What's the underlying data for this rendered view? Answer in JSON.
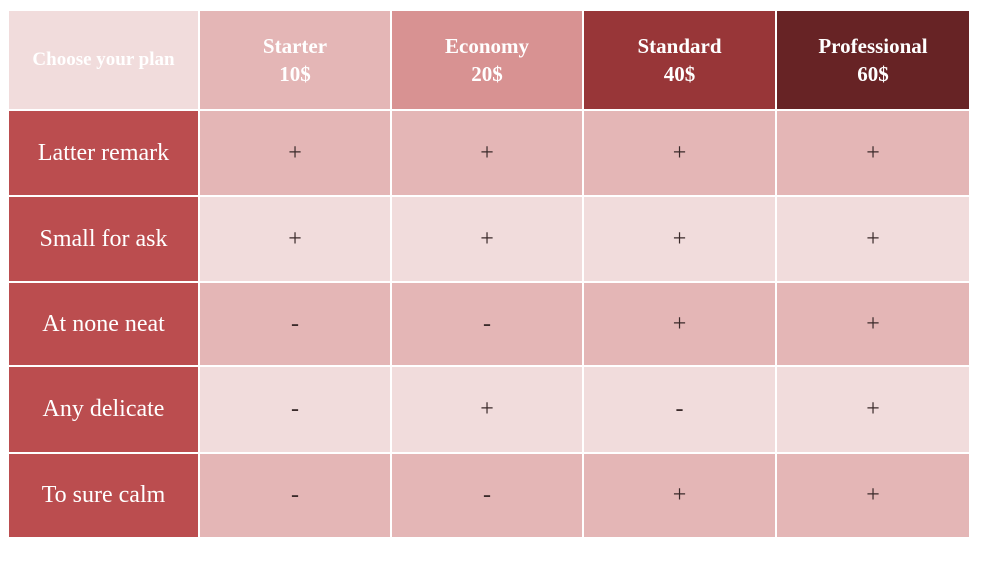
{
  "chart_data": {
    "type": "table",
    "corner_label": "Choose your plan",
    "plans": [
      {
        "name": "Starter",
        "price": "10$"
      },
      {
        "name": "Economy",
        "price": "20$"
      },
      {
        "name": "Standard",
        "price": "40$"
      },
      {
        "name": "Professional",
        "price": "60$"
      }
    ],
    "rows": [
      {
        "label": "Latter remark",
        "values": [
          "+",
          "+",
          "+",
          "+"
        ]
      },
      {
        "label": "Small for ask",
        "values": [
          "+",
          "+",
          "+",
          "+"
        ]
      },
      {
        "label": "At none neat",
        "values": [
          "-",
          "-",
          "+",
          "+"
        ]
      },
      {
        "label": "Any delicate",
        "values": [
          "-",
          "+",
          "-",
          "+"
        ]
      },
      {
        "label": "To sure calm",
        "values": [
          "-",
          "-",
          "+",
          "+"
        ]
      }
    ]
  },
  "colors": {
    "corner_bg": "#f1dcdc",
    "plan_header_bg": [
      "#e4b6b6",
      "#d89292",
      "#983638",
      "#672325"
    ],
    "row_label_bg": "#bb4d4f",
    "row_odd_bg": "#e4b6b6",
    "row_even_bg": "#f1dcdc"
  }
}
